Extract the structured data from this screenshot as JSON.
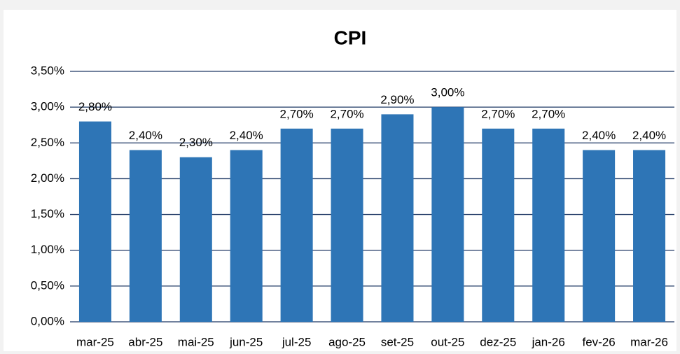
{
  "chart_data": {
    "type": "bar",
    "title": "CPI",
    "categories": [
      "mar-25",
      "abr-25",
      "mai-25",
      "jun-25",
      "jul-25",
      "ago-25",
      "set-25",
      "out-25",
      "dez-25",
      "jan-26",
      "fev-26",
      "mar-26"
    ],
    "values": [
      2.8,
      2.4,
      2.3,
      2.4,
      2.7,
      2.7,
      2.9,
      3.0,
      2.7,
      2.7,
      2.4,
      2.4
    ],
    "value_labels": [
      "2,80%",
      "2,40%",
      "2,30%",
      "2,40%",
      "2,70%",
      "2,70%",
      "2,90%",
      "3,00%",
      "2,70%",
      "2,70%",
      "2,40%",
      "2,40%"
    ],
    "color": "#2e75b6",
    "ylim": [
      0,
      3.5
    ],
    "yticks": [
      {
        "value": 0,
        "label": "0,00%"
      },
      {
        "value": 0.5,
        "label": "0,50%"
      },
      {
        "value": 1,
        "label": "1,00%"
      },
      {
        "value": 1.5,
        "label": "1,50%"
      },
      {
        "value": 2,
        "label": "2,00%"
      },
      {
        "value": 2.5,
        "label": "2,50%"
      },
      {
        "value": 3,
        "label": "3,00%"
      },
      {
        "value": 3.5,
        "label": "3,50%"
      }
    ],
    "grid": true
  }
}
